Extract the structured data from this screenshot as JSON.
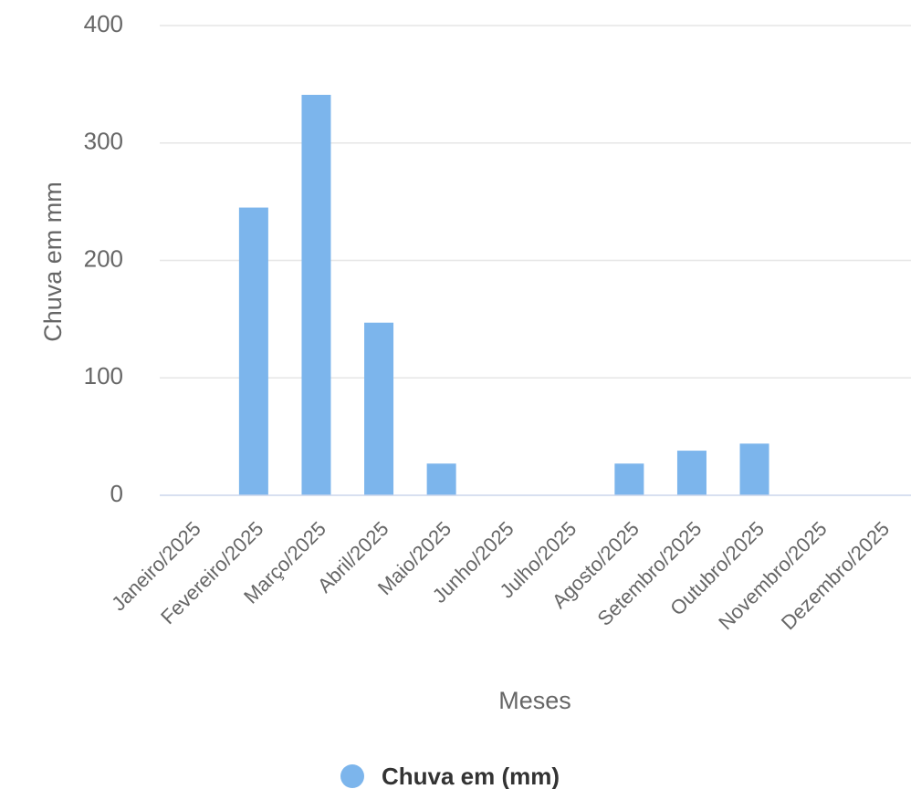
{
  "chart_data": {
    "type": "bar",
    "categories": [
      "Janeiro/2025",
      "Fevereiro/2025",
      "Março/2025",
      "Abril/2025",
      "Maio/2025",
      "Junho/2025",
      "Julho/2025",
      "Agosto/2025",
      "Setembro/2025",
      "Outubro/2025",
      "Novembro/2025",
      "Dezembro/2025"
    ],
    "series": [
      {
        "name": "Chuva em (mm)",
        "values": [
          0,
          245,
          341,
          147,
          27,
          0,
          0,
          27,
          38,
          44,
          0,
          0
        ],
        "color": "#7cb5ec"
      }
    ],
    "xlabel": "Meses",
    "ylabel": "Chuva em mm",
    "ylim": [
      0,
      400
    ],
    "yticks": [
      0,
      100,
      200,
      300,
      400
    ],
    "grid": true,
    "legend_position": "bottom-center"
  }
}
